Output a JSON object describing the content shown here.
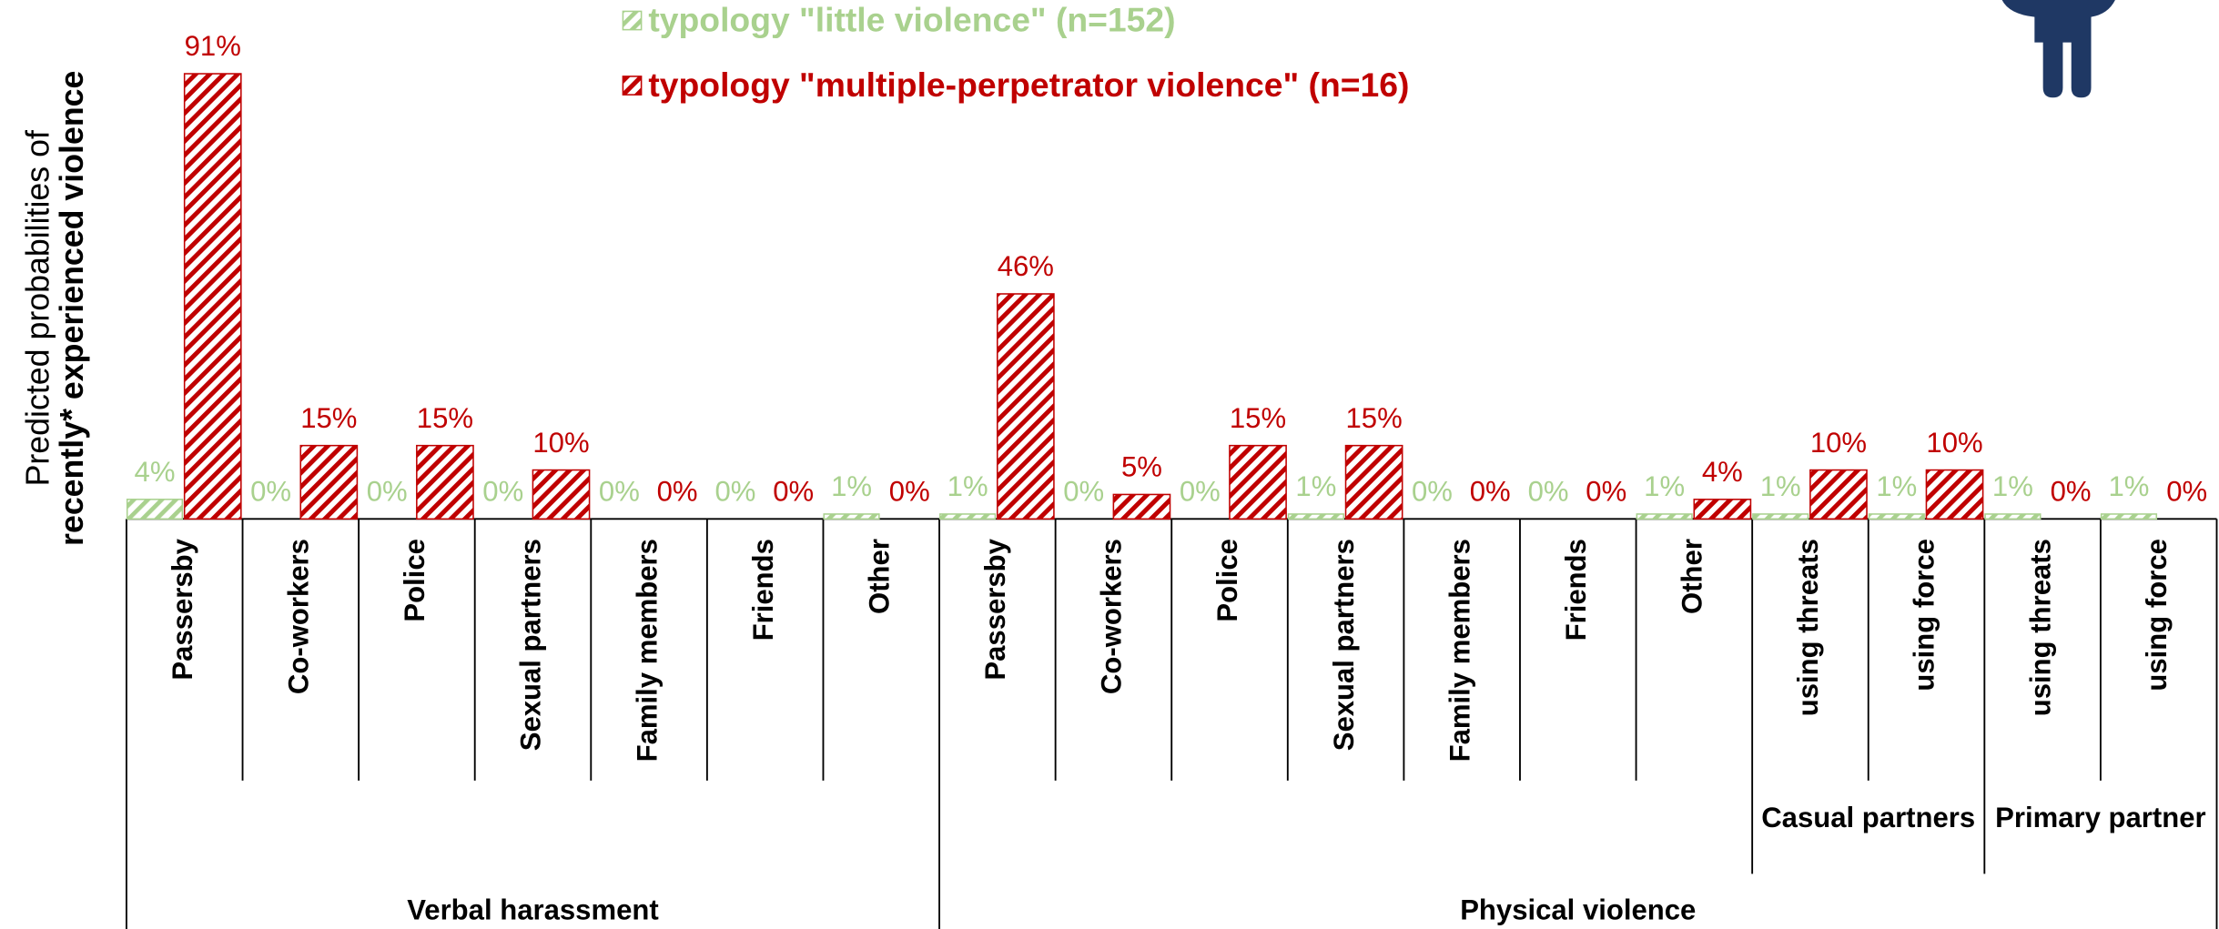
{
  "chart_data": {
    "type": "bar",
    "y_axis_title": [
      "Predicted probabilities of",
      "recently* experienced violence"
    ],
    "groups": [
      {
        "label": "Verbal harassment",
        "categories": [
          "Passersby",
          "Co-workers",
          "Police",
          "Sexual partners",
          "Family members",
          "Friends",
          "Other"
        ]
      },
      {
        "label": "Physical violence",
        "categories": [
          "Passersby",
          "Co-workers",
          "Police",
          "Sexual partners",
          "Family members",
          "Friends",
          "Other"
        ],
        "subgroups": [
          {
            "label": "Casual partners",
            "categories": [
              "using threats",
              "using force"
            ]
          },
          {
            "label": "Primary partner",
            "categories": [
              "using threats",
              "using force"
            ]
          }
        ]
      }
    ],
    "series": [
      {
        "name": "typology \"little violence\" (n=152)",
        "color": "#a9d18e",
        "values": [
          4,
          0,
          0,
          0,
          0,
          0,
          1,
          1,
          0,
          0,
          1,
          0,
          0,
          1,
          1,
          1,
          1,
          1
        ],
        "value_labels": [
          "4%",
          "0%",
          "0%",
          "0%",
          "0%",
          "0%",
          "1%",
          "1%",
          "0%",
          "0%",
          "1%",
          "0%",
          "0%",
          "1%",
          "1%",
          "1%",
          "1%",
          "1%"
        ]
      },
      {
        "name": "typology \"multiple-perpetrator violence\" (n=16)",
        "color": "#c00000",
        "values": [
          91,
          15,
          15,
          10,
          0,
          0,
          0,
          46,
          5,
          15,
          15,
          0,
          0,
          4,
          10,
          10,
          0,
          0
        ],
        "value_labels": [
          "91%",
          "15%",
          "15%",
          "10%",
          "0%",
          "0%",
          "0%",
          "46%",
          "5%",
          "15%",
          "15%",
          "0%",
          "0%",
          "4%",
          "10%",
          "10%",
          "0%",
          "0%"
        ]
      }
    ]
  }
}
